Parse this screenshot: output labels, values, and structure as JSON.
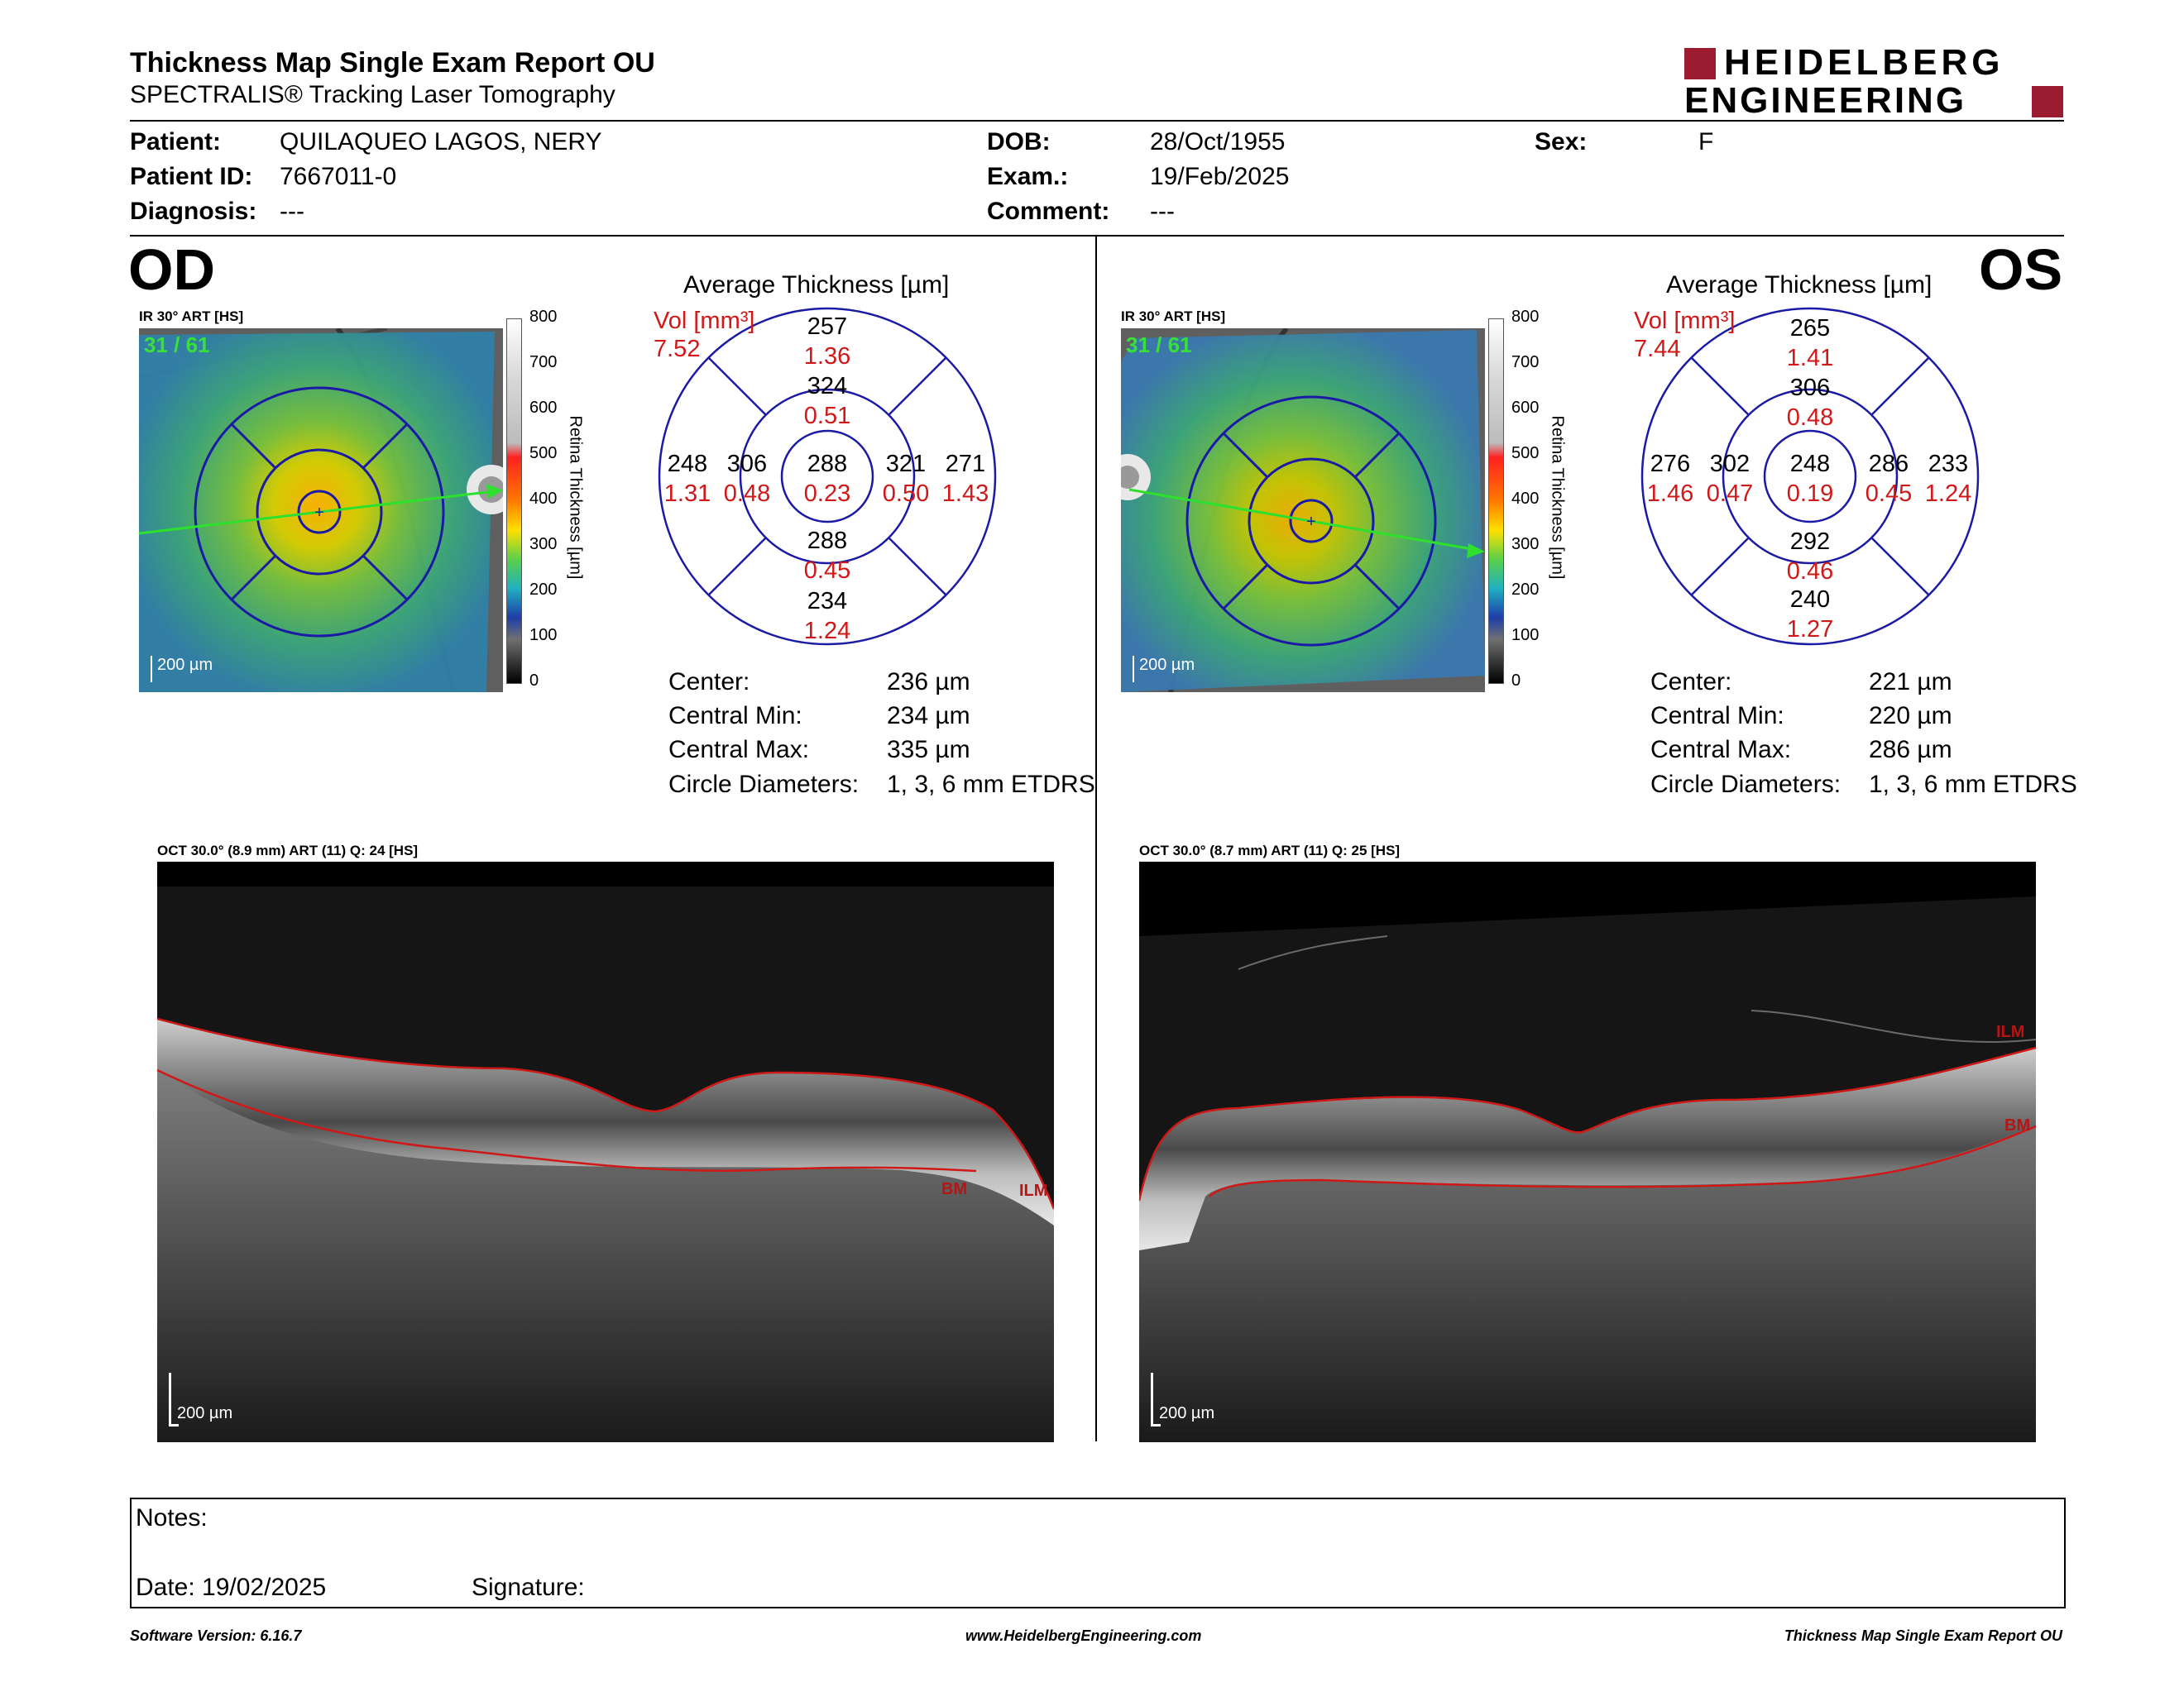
{
  "header": {
    "title": "Thickness Map Single Exam Report OU",
    "subtitle": "SPECTRALIS® Tracking Laser Tomography",
    "logo_line1": "HEIDELBERG",
    "logo_line2": "ENGINEERING"
  },
  "patient": {
    "patient_label": "Patient:",
    "patient_value": "QUILAQUEO LAGOS, NERY",
    "id_label": "Patient ID:",
    "id_value": "7667011-0",
    "diagnosis_label": "Diagnosis:",
    "diagnosis_value": "---",
    "dob_label": "DOB:",
    "dob_value": "28/Oct/1955",
    "exam_label": "Exam.:",
    "exam_value": "19/Feb/2025",
    "comment_label": "Comment:",
    "comment_value": "---",
    "sex_label": "Sex:",
    "sex_value": "F"
  },
  "od": {
    "eye_label": "OD",
    "ir_label": "IR 30° ART [HS]",
    "frames": "31 / 61",
    "scale": "200 µm",
    "avg_title": "Average Thickness [µm]",
    "vol_label": "Vol [mm³]",
    "vol_value": "7.52",
    "sectors": {
      "center": {
        "t": "288",
        "v": "0.23"
      },
      "inner_sup": {
        "t": "324",
        "v": "0.51"
      },
      "inner_inf": {
        "t": "288",
        "v": "0.45"
      },
      "inner_nasal_left": {
        "t": "306",
        "v": "0.48"
      },
      "inner_right": {
        "t": "321",
        "v": "0.50"
      },
      "outer_sup": {
        "t": "257",
        "v": "1.36"
      },
      "outer_inf": {
        "t": "234",
        "v": "1.24"
      },
      "outer_left": {
        "t": "248",
        "v": "1.31"
      },
      "outer_right": {
        "t": "271",
        "v": "1.43"
      }
    },
    "stats": {
      "center_label": "Center:",
      "center_value": "236 µm",
      "min_label": "Central Min:",
      "min_value": "234 µm",
      "max_label": "Central Max:",
      "max_value": "335 µm",
      "diam_label": "Circle Diameters:",
      "diam_value": "1, 3, 6 mm ETDRS"
    },
    "oct_label": "OCT 30.0° (8.9 mm) ART (11) Q: 24 [HS]",
    "oct_scale": "200 µm",
    "bm": "BM",
    "ilm": "ILM"
  },
  "os": {
    "eye_label": "OS",
    "ir_label": "IR 30° ART [HS]",
    "frames": "31 / 61",
    "scale": "200 µm",
    "avg_title": "Average Thickness [µm]",
    "vol_label": "Vol [mm³]",
    "vol_value": "7.44",
    "sectors": {
      "center": {
        "t": "248",
        "v": "0.19"
      },
      "inner_sup": {
        "t": "306",
        "v": "0.48"
      },
      "inner_inf": {
        "t": "292",
        "v": "0.46"
      },
      "inner_nasal_left": {
        "t": "302",
        "v": "0.47"
      },
      "inner_right": {
        "t": "286",
        "v": "0.45"
      },
      "outer_sup": {
        "t": "265",
        "v": "1.41"
      },
      "outer_inf": {
        "t": "240",
        "v": "1.27"
      },
      "outer_left": {
        "t": "276",
        "v": "1.46"
      },
      "outer_right": {
        "t": "233",
        "v": "1.24"
      }
    },
    "stats": {
      "center_label": "Center:",
      "center_value": "221 µm",
      "min_label": "Central Min:",
      "min_value": "220 µm",
      "max_label": "Central Max:",
      "max_value": "286 µm",
      "diam_label": "Circle Diameters:",
      "diam_value": "1, 3, 6 mm ETDRS"
    },
    "oct_label": "OCT 30.0° (8.7 mm) ART (11) Q: 25 [HS]",
    "oct_scale": "200 µm",
    "bm": "BM",
    "ilm": "ILM"
  },
  "colorbar": {
    "ticks": [
      "800",
      "700",
      "600",
      "500",
      "400",
      "300",
      "200",
      "100",
      "0"
    ],
    "axis_label": "Retina Thickness [µm]"
  },
  "notes": {
    "notes_label": "Notes:",
    "date_label": "Date: 19/02/2025",
    "signature_label": "Signature:"
  },
  "footer": {
    "left": "Software Version: 6.16.7",
    "center": "www.HeidelbergEngineering.com",
    "right": "Thickness Map Single Exam Report OU"
  },
  "colors": {
    "accent_red": "#d01818",
    "logo_red": "#9b1b30",
    "grid_blue": "#1a1aa6",
    "label_green": "#38e038"
  }
}
